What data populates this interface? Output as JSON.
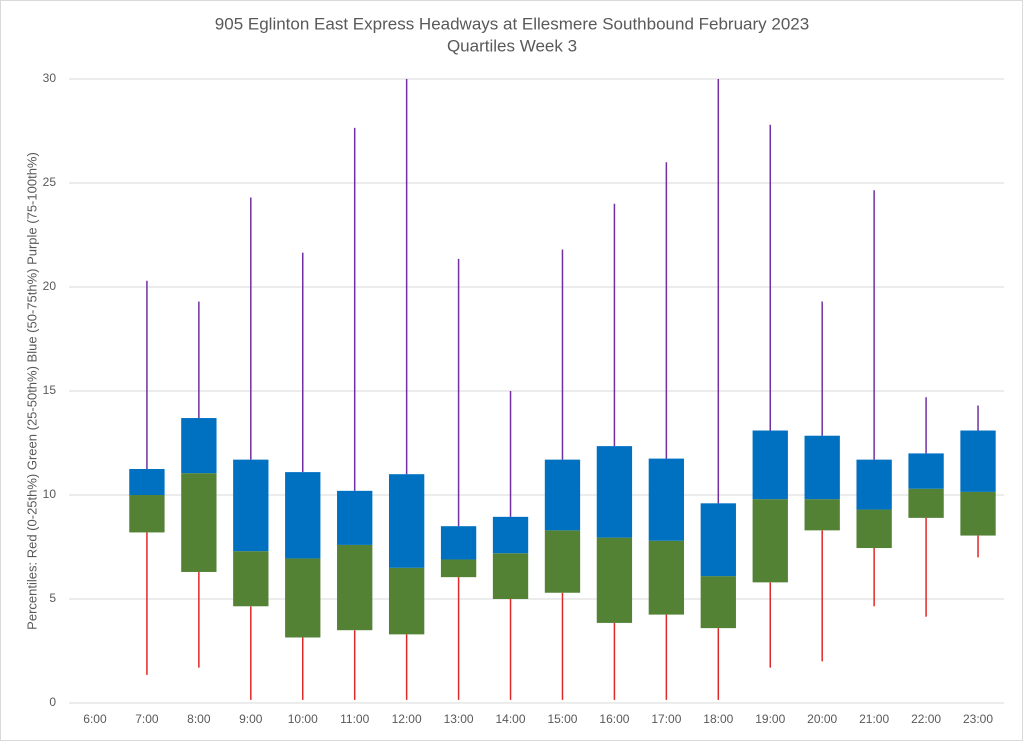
{
  "chart_data": {
    "type": "quartile-box",
    "title": "905 Eglinton East Express Headways at Ellesmere Southbound February 2023",
    "subtitle": "Quartiles Week 3",
    "y_label": "Percentiles:  Red (0-25th%)  Green (25-50th%)  Blue (50-75th%)  Purple (75-100th%)",
    "categories": [
      "6:00",
      "7:00",
      "8:00",
      "9:00",
      "10:00",
      "11:00",
      "12:00",
      "13:00",
      "14:00",
      "15:00",
      "16:00",
      "17:00",
      "18:00",
      "19:00",
      "20:00",
      "21:00",
      "22:00",
      "23:00"
    ],
    "min": [
      null,
      1.35,
      1.7,
      0.15,
      0.15,
      0.15,
      0.15,
      0.15,
      0.15,
      0.15,
      0.15,
      0.15,
      0.15,
      1.7,
      2.0,
      4.65,
      4.15,
      7.0
    ],
    "q1": [
      null,
      8.2,
      6.3,
      4.65,
      3.15,
      3.5,
      3.3,
      6.05,
      5.0,
      5.3,
      3.85,
      4.25,
      3.6,
      5.8,
      8.3,
      7.45,
      8.9,
      8.05
    ],
    "median": [
      null,
      10.0,
      11.05,
      7.3,
      6.95,
      7.6,
      6.5,
      6.9,
      7.2,
      8.3,
      7.95,
      7.8,
      6.1,
      9.8,
      9.8,
      9.3,
      10.3,
      10.15
    ],
    "q3": [
      null,
      11.25,
      13.7,
      11.7,
      11.1,
      10.2,
      11.0,
      8.5,
      8.95,
      11.7,
      12.35,
      11.75,
      9.6,
      13.1,
      12.85,
      11.7,
      12.0,
      13.1
    ],
    "max": [
      null,
      20.3,
      19.3,
      24.3,
      21.65,
      27.65,
      30,
      21.35,
      15.0,
      21.8,
      24.0,
      26.0,
      30,
      27.8,
      19.3,
      24.65,
      14.7,
      14.3
    ],
    "colors": {
      "min": "#e02828",
      "q1": "#548235",
      "median": "#0070c0",
      "q3": "#7030a0"
    },
    "ylim": [
      0,
      30
    ],
    "yticks": [
      0,
      5,
      10,
      15,
      20,
      25,
      30
    ],
    "grid": true
  }
}
